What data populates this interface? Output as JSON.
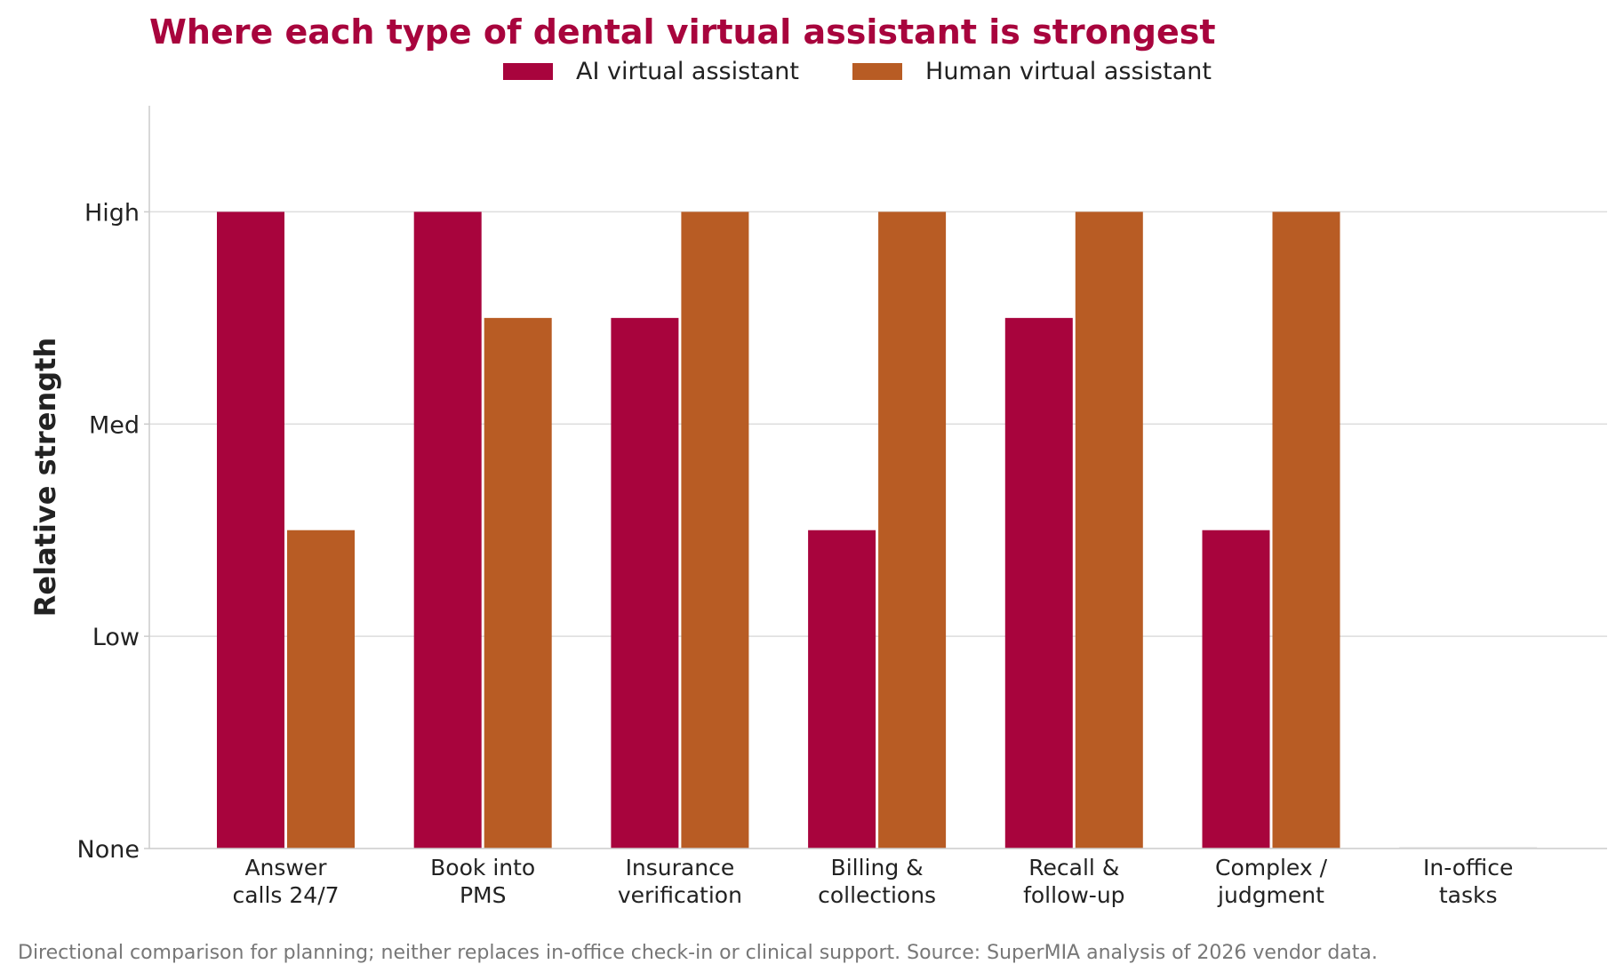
{
  "chart_data": {
    "type": "bar",
    "title": "Where each type of dental virtual assistant is strongest",
    "xlabel": "",
    "ylabel": "Relative strength",
    "categories": [
      "Answer\ncalls 24/7",
      "Book into\nPMS",
      "Insurance\nverification",
      "Billing &\ncollections",
      "Recall &\nfollow-up",
      "Complex /\njudgment",
      "In-office\ntasks"
    ],
    "series": [
      {
        "name": "AI virtual assistant",
        "color": "#a8043d",
        "values": [
          3,
          3,
          2.5,
          1.5,
          2.5,
          1.5,
          0
        ]
      },
      {
        "name": "Human virtual assistant",
        "color": "#b85c24",
        "values": [
          1.5,
          2.5,
          3,
          3,
          3,
          3,
          0
        ]
      }
    ],
    "yticks": [
      0,
      1,
      2,
      3
    ],
    "ytick_labels": [
      "None",
      "Low",
      "Med",
      "High"
    ],
    "ylim": [
      0,
      3.5
    ],
    "grid": true,
    "legend_position": "top-center",
    "footnote": "Directional comparison for planning; neither replaces in-office check-in or clinical support. Source: SuperMIA analysis of 2026 vendor data."
  },
  "colors": {
    "title": "#a8043d",
    "grid": "#dddddd",
    "axis": "#cccccc",
    "text": "#222222",
    "footnote": "#777777"
  }
}
